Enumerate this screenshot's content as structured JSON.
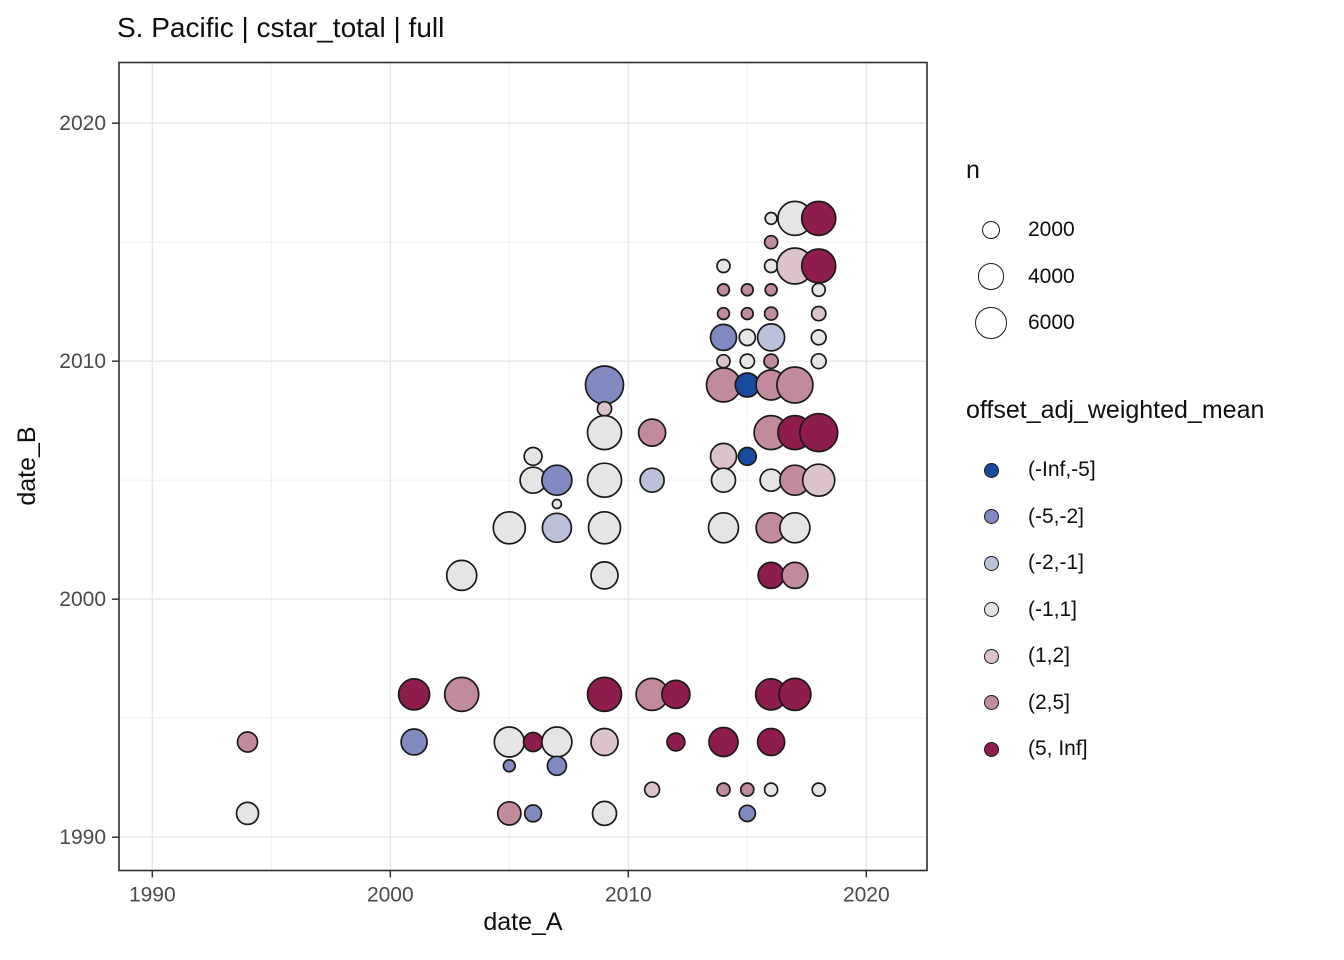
{
  "chart_data": {
    "type": "scatter",
    "title": "S. Pacific | cstar_total | full",
    "xlabel": "date_A",
    "ylabel": "date_B",
    "x_ticks": [
      1990,
      2000,
      2010,
      2020
    ],
    "y_ticks": [
      1990,
      2000,
      2010,
      2020
    ],
    "x_minor": [
      1995,
      2005,
      2015
    ],
    "y_minor": [
      1995,
      2005,
      2015
    ],
    "xlim": [
      1988.6,
      2022.55
    ],
    "ylim": [
      1988.6,
      2022.55
    ],
    "grid": true,
    "legend_position": "right",
    "size_legend": {
      "title": "n",
      "values": [
        2000,
        4000,
        6000
      ]
    },
    "color_legend": {
      "title": "offset_adj_weighted_mean",
      "bins": [
        {
          "label": "(-Inf,-5]",
          "color": "#164B9E"
        },
        {
          "label": "(-5,-2]",
          "color": "#8089C0"
        },
        {
          "label": "(-2,-1]",
          "color": "#BBC0DB"
        },
        {
          "label": "(-1,1]",
          "color": "#E6E5E6"
        },
        {
          "label": "(1,2]",
          "color": "#DCC3CA"
        },
        {
          "label": "(2,5]",
          "color": "#C28B9B"
        },
        {
          "label": "(5, Inf]",
          "color": "#8E1C4D"
        }
      ]
    },
    "points": [
      {
        "date_A": 1994,
        "date_B": 1994,
        "bin": "(2,5]",
        "n": 2000
      },
      {
        "date_A": 1994,
        "date_B": 1991,
        "bin": "(-1,1]",
        "n": 2400
      },
      {
        "date_A": 2001,
        "date_B": 1996,
        "bin": "(5, Inf]",
        "n": 4800
      },
      {
        "date_A": 2001,
        "date_B": 1994,
        "bin": "(-5,-2]",
        "n": 3400
      },
      {
        "date_A": 2003,
        "date_B": 2001,
        "bin": "(-1,1]",
        "n": 4500
      },
      {
        "date_A": 2003,
        "date_B": 1996,
        "bin": "(2,5]",
        "n": 5800
      },
      {
        "date_A": 2005,
        "date_B": 2003,
        "bin": "(-1,1]",
        "n": 5100
      },
      {
        "date_A": 2005,
        "date_B": 1994,
        "bin": "(-1,1]",
        "n": 4500
      },
      {
        "date_A": 2005,
        "date_B": 1993,
        "bin": "(-5,-2]",
        "n": 700
      },
      {
        "date_A": 2005,
        "date_B": 1991,
        "bin": "(2,5]",
        "n": 2700
      },
      {
        "date_A": 2006,
        "date_B": 2006,
        "bin": "(-1,1]",
        "n": 1600
      },
      {
        "date_A": 2006,
        "date_B": 2005,
        "bin": "(-1,1]",
        "n": 3400
      },
      {
        "date_A": 2006,
        "date_B": 1994,
        "bin": "(5, Inf]",
        "n": 1800
      },
      {
        "date_A": 2006,
        "date_B": 1991,
        "bin": "(-5,-2]",
        "n": 1400
      },
      {
        "date_A": 2007,
        "date_B": 2005,
        "bin": "(-5,-2]",
        "n": 4500
      },
      {
        "date_A": 2007,
        "date_B": 2004,
        "bin": "(-1,1]",
        "n": 400
      },
      {
        "date_A": 2007,
        "date_B": 2003,
        "bin": "(-2,-1]",
        "n": 4200
      },
      {
        "date_A": 2007,
        "date_B": 1994,
        "bin": "(-1,1]",
        "n": 4500
      },
      {
        "date_A": 2007,
        "date_B": 1993,
        "bin": "(-5,-2]",
        "n": 1800
      },
      {
        "date_A": 2009,
        "date_B": 2009,
        "bin": "(-5,-2]",
        "n": 7200
      },
      {
        "date_A": 2009,
        "date_B": 2008,
        "bin": "(1,2]",
        "n": 1000
      },
      {
        "date_A": 2009,
        "date_B": 2007,
        "bin": "(-1,1]",
        "n": 5800
      },
      {
        "date_A": 2009,
        "date_B": 2005,
        "bin": "(-1,1]",
        "n": 5800
      },
      {
        "date_A": 2009,
        "date_B": 2003,
        "bin": "(-1,1]",
        "n": 5100
      },
      {
        "date_A": 2009,
        "date_B": 2001,
        "bin": "(-1,1]",
        "n": 3650
      },
      {
        "date_A": 2009,
        "date_B": 1996,
        "bin": "(5, Inf]",
        "n": 5800
      },
      {
        "date_A": 2009,
        "date_B": 1994,
        "bin": "(1,2]",
        "n": 3650
      },
      {
        "date_A": 2009,
        "date_B": 1991,
        "bin": "(-1,1]",
        "n": 2900
      },
      {
        "date_A": 2011,
        "date_B": 2007,
        "bin": "(2,5]",
        "n": 3650
      },
      {
        "date_A": 2011,
        "date_B": 2005,
        "bin": "(-2,-1]",
        "n": 2900
      },
      {
        "date_A": 2011,
        "date_B": 1996,
        "bin": "(2,5]",
        "n": 5100
      },
      {
        "date_A": 2011,
        "date_B": 1992,
        "bin": "(1,2]",
        "n": 1100
      },
      {
        "date_A": 2012,
        "date_B": 1996,
        "bin": "(5, Inf]",
        "n": 3900
      },
      {
        "date_A": 2012,
        "date_B": 1994,
        "bin": "(5, Inf]",
        "n": 1600
      },
      {
        "date_A": 2014,
        "date_B": 2014,
        "bin": "(-1,1]",
        "n": 850
      },
      {
        "date_A": 2014,
        "date_B": 2013,
        "bin": "(2,5]",
        "n": 700
      },
      {
        "date_A": 2014,
        "date_B": 2012,
        "bin": "(2,5]",
        "n": 700
      },
      {
        "date_A": 2014,
        "date_B": 2011,
        "bin": "(-5,-2]",
        "n": 3400
      },
      {
        "date_A": 2014,
        "date_B": 2010,
        "bin": "(1,2]",
        "n": 850
      },
      {
        "date_A": 2014,
        "date_B": 2009,
        "bin": "(2,5]",
        "n": 5800
      },
      {
        "date_A": 2014,
        "date_B": 2006,
        "bin": "(1,2]",
        "n": 3400
      },
      {
        "date_A": 2014,
        "date_B": 2005,
        "bin": "(-1,1]",
        "n": 2900
      },
      {
        "date_A": 2014,
        "date_B": 2003,
        "bin": "(-1,1]",
        "n": 4500
      },
      {
        "date_A": 2014,
        "date_B": 1994,
        "bin": "(5, Inf]",
        "n": 4200
      },
      {
        "date_A": 2014,
        "date_B": 1992,
        "bin": "(2,5]",
        "n": 850
      },
      {
        "date_A": 2015,
        "date_B": 2013,
        "bin": "(2,5]",
        "n": 700
      },
      {
        "date_A": 2015,
        "date_B": 2012,
        "bin": "(2,5]",
        "n": 700
      },
      {
        "date_A": 2015,
        "date_B": 2011,
        "bin": "(-1,1]",
        "n": 1300
      },
      {
        "date_A": 2015,
        "date_B": 2010,
        "bin": "(-1,1]",
        "n": 1000
      },
      {
        "date_A": 2015,
        "date_B": 2009,
        "bin": "(-Inf,-5]",
        "n": 2900
      },
      {
        "date_A": 2015,
        "date_B": 2006,
        "bin": "(-Inf,-5]",
        "n": 1600
      },
      {
        "date_A": 2015,
        "date_B": 1992,
        "bin": "(2,5]",
        "n": 850
      },
      {
        "date_A": 2015,
        "date_B": 1991,
        "bin": "(-5,-2]",
        "n": 1300
      },
      {
        "date_A": 2016,
        "date_B": 2016,
        "bin": "(-1,1]",
        "n": 700
      },
      {
        "date_A": 2016,
        "date_B": 2015,
        "bin": "(2,5]",
        "n": 850
      },
      {
        "date_A": 2016,
        "date_B": 2014,
        "bin": "(-1,1]",
        "n": 850
      },
      {
        "date_A": 2016,
        "date_B": 2013,
        "bin": "(2,5]",
        "n": 700
      },
      {
        "date_A": 2016,
        "date_B": 2012,
        "bin": "(2,5]",
        "n": 850
      },
      {
        "date_A": 2016,
        "date_B": 2011,
        "bin": "(-2,-1]",
        "n": 3650
      },
      {
        "date_A": 2016,
        "date_B": 2010,
        "bin": "(2,5]",
        "n": 1000
      },
      {
        "date_A": 2016,
        "date_B": 2009,
        "bin": "(2,5]",
        "n": 4500
      },
      {
        "date_A": 2016,
        "date_B": 2007,
        "bin": "(2,5]",
        "n": 5800
      },
      {
        "date_A": 2016,
        "date_B": 2005,
        "bin": "(-1,1]",
        "n": 2400
      },
      {
        "date_A": 2016,
        "date_B": 2003,
        "bin": "(2,5]",
        "n": 4500
      },
      {
        "date_A": 2016,
        "date_B": 2001,
        "bin": "(5, Inf]",
        "n": 3400
      },
      {
        "date_A": 2016,
        "date_B": 1996,
        "bin": "(5, Inf]",
        "n": 4800
      },
      {
        "date_A": 2016,
        "date_B": 1994,
        "bin": "(5, Inf]",
        "n": 3650
      },
      {
        "date_A": 2016,
        "date_B": 1992,
        "bin": "(-1,1]",
        "n": 850
      },
      {
        "date_A": 2017,
        "date_B": 2016,
        "bin": "(-1,1]",
        "n": 5800
      },
      {
        "date_A": 2017,
        "date_B": 2014,
        "bin": "(1,2]",
        "n": 6500
      },
      {
        "date_A": 2017,
        "date_B": 2009,
        "bin": "(2,5]",
        "n": 6500
      },
      {
        "date_A": 2017,
        "date_B": 2007,
        "bin": "(5, Inf]",
        "n": 5800
      },
      {
        "date_A": 2017,
        "date_B": 2005,
        "bin": "(2,5]",
        "n": 4500
      },
      {
        "date_A": 2017,
        "date_B": 2003,
        "bin": "(-1,1]",
        "n": 4500
      },
      {
        "date_A": 2017,
        "date_B": 2001,
        "bin": "(2,5]",
        "n": 3400
      },
      {
        "date_A": 2017,
        "date_B": 1996,
        "bin": "(5, Inf]",
        "n": 5100
      },
      {
        "date_A": 2018,
        "date_B": 2016,
        "bin": "(5, Inf]",
        "n": 5800
      },
      {
        "date_A": 2018,
        "date_B": 2014,
        "bin": "(5, Inf]",
        "n": 5800
      },
      {
        "date_A": 2018,
        "date_B": 2013,
        "bin": "(-1,1]",
        "n": 850
      },
      {
        "date_A": 2018,
        "date_B": 2012,
        "bin": "(1,2]",
        "n": 1000
      },
      {
        "date_A": 2018,
        "date_B": 2011,
        "bin": "(-1,1]",
        "n": 1100
      },
      {
        "date_A": 2018,
        "date_B": 2010,
        "bin": "(-1,1]",
        "n": 1100
      },
      {
        "date_A": 2018,
        "date_B": 2007,
        "bin": "(5, Inf]",
        "n": 7200
      },
      {
        "date_A": 2018,
        "date_B": 2005,
        "bin": "(1,2]",
        "n": 5100
      },
      {
        "date_A": 2018,
        "date_B": 1992,
        "bin": "(-1,1]",
        "n": 850
      }
    ]
  }
}
